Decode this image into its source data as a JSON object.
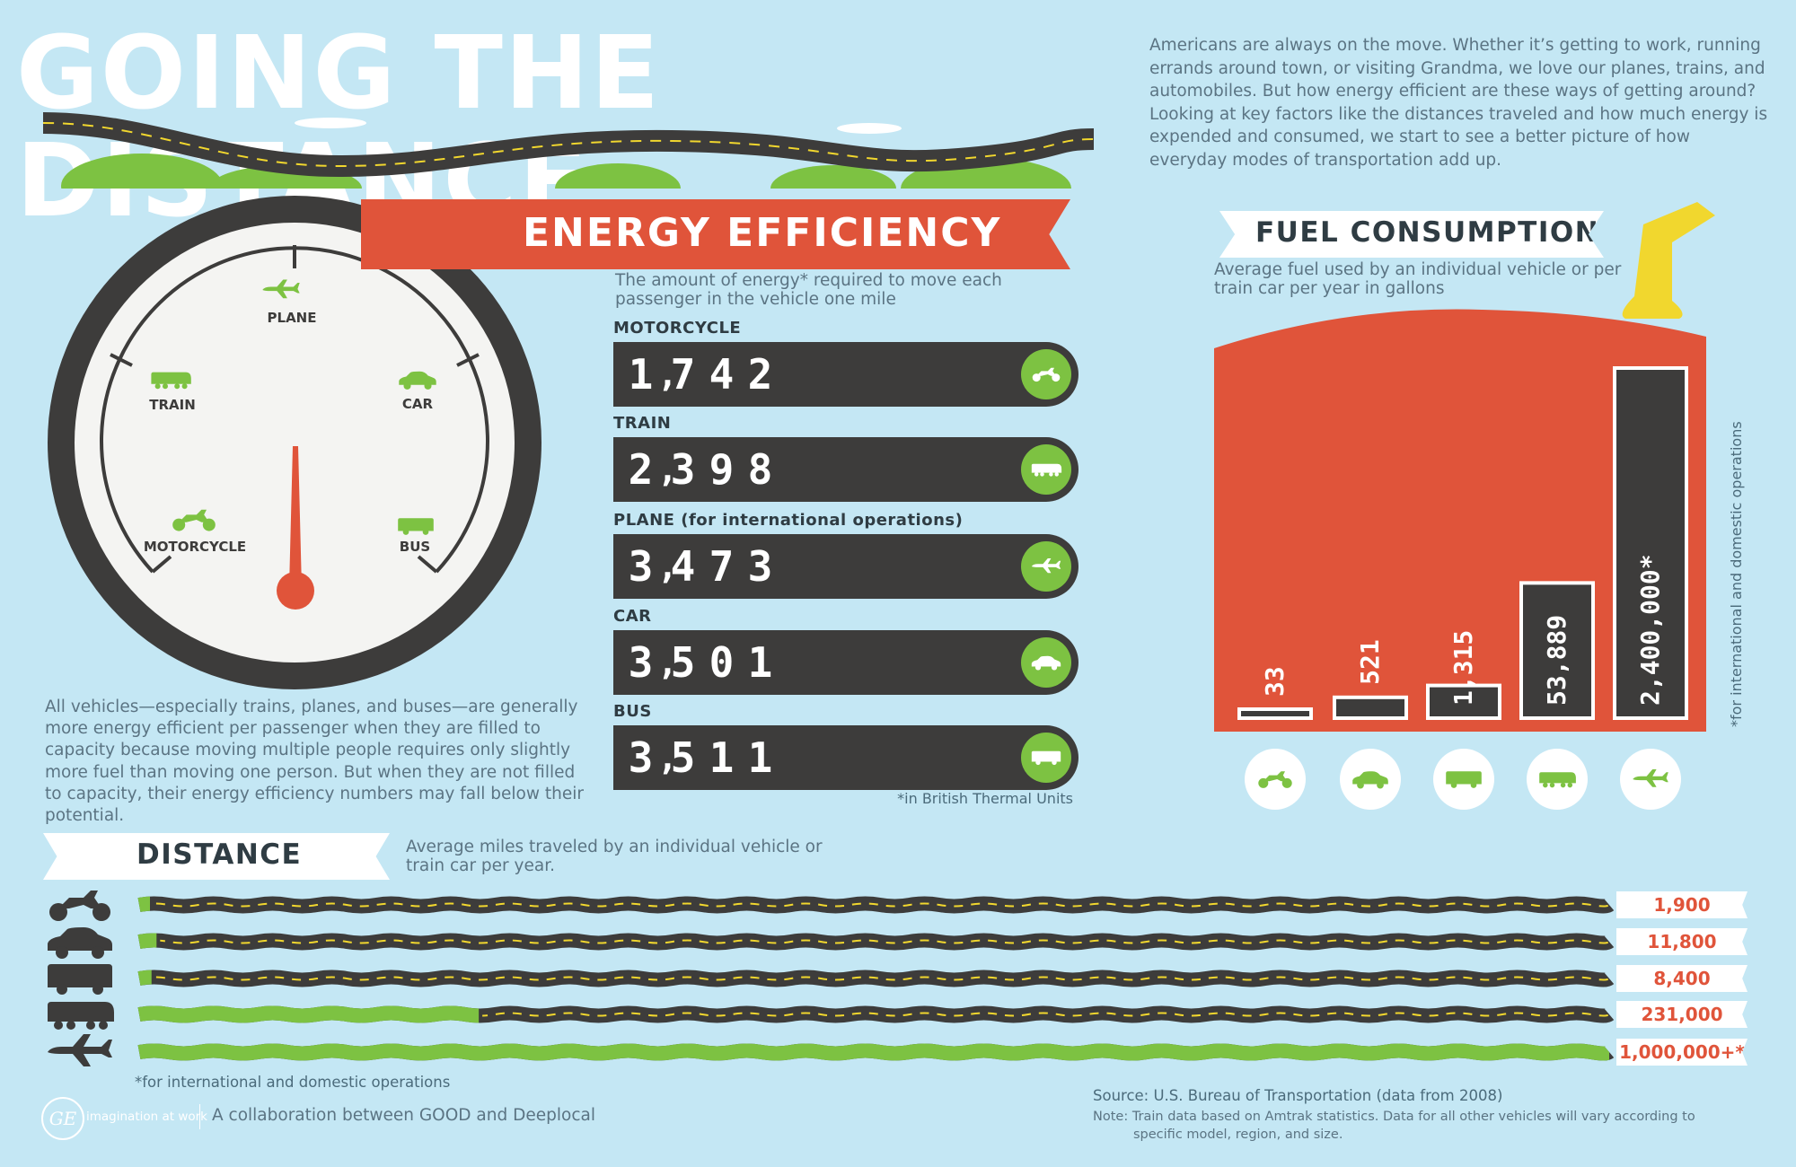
{
  "header": {
    "title": "GOING THE DISTANCE",
    "intro": "Americans are always on the move. Whether it’s getting to work, running errands around town, or visiting Grandma, we love our planes, trains, and automobiles. But how energy efficient are these ways of getting around? Looking at key factors like the distances traveled and how much energy is expended and consumed, we start to see a better picture of how everyday modes of transportation add up."
  },
  "gauge": {
    "labels": [
      "PLANE",
      "TRAIN",
      "CAR",
      "MOTORCYCLE",
      "BUS"
    ],
    "note": "All vehicles—especially trains, planes, and buses—are generally more energy efficient per passenger when they are filled to capacity because moving multiple people requires only slightly more fuel than moving one person. But when they are not filled to capacity, their energy efficiency numbers may fall below their potential."
  },
  "colors": {
    "background": "#c4e7f4",
    "accent_red": "#e0543a",
    "green": "#7dc242",
    "dark": "#3d3c3b",
    "yellow": "#f1d72e"
  },
  "energy_efficiency": {
    "title": "ENERGY EFFICIENCY",
    "subtitle": "The amount of energy* required to move each passenger in the vehicle one mile",
    "footnote": "*in British Thermal Units",
    "items": [
      {
        "label": "MOTORCYCLE",
        "value": "1,742",
        "icon": "motorcycle-icon"
      },
      {
        "label": "TRAIN",
        "value": "2,398",
        "icon": "train-icon"
      },
      {
        "label": "PLANE (for international operations)",
        "value": "3,473",
        "icon": "plane-icon"
      },
      {
        "label": "CAR",
        "value": "3,501",
        "icon": "car-icon"
      },
      {
        "label": "BUS",
        "value": "3,511",
        "icon": "bus-icon"
      }
    ]
  },
  "fuel_consumption": {
    "title": "FUEL CONSUMPTION",
    "subtitle": "Average fuel used by an individual vehicle or per train car per year in gallons",
    "side_note": "*for international and domestic operations",
    "items": [
      {
        "label": "33",
        "icon": "motorcycle-icon"
      },
      {
        "label": "521",
        "icon": "car-icon"
      },
      {
        "label": "1,315",
        "icon": "bus-icon"
      },
      {
        "label": "53,889",
        "icon": "train-icon"
      },
      {
        "label": "2,400,000*",
        "icon": "plane-icon"
      }
    ]
  },
  "distance": {
    "title": "DISTANCE",
    "subtitle": "Average miles traveled by an individual vehicle or train car per year.",
    "footnote": "*for international and domestic operations",
    "items": [
      {
        "label": "1,900",
        "icon": "motorcycle-icon",
        "fill": 0.0019
      },
      {
        "label": "11,800",
        "icon": "car-icon",
        "fill": 0.0118
      },
      {
        "label": "8,400",
        "icon": "bus-icon",
        "fill": 0.0084
      },
      {
        "label": "231,000",
        "icon": "train-icon",
        "fill": 0.231
      },
      {
        "label": "1,000,000+*",
        "icon": "plane-icon",
        "fill": 1.0
      }
    ]
  },
  "chart_data": [
    {
      "type": "bar",
      "title": "ENERGY EFFICIENCY",
      "subtitle": "The amount of energy* required to move each passenger in the vehicle one mile",
      "categories": [
        "MOTORCYCLE",
        "TRAIN",
        "PLANE (for international operations)",
        "CAR",
        "BUS"
      ],
      "values": [
        1742,
        2398,
        3473,
        3501,
        3511
      ],
      "note": "*in British Thermal Units"
    },
    {
      "type": "bar",
      "title": "FUEL CONSUMPTION",
      "subtitle": "Average fuel used by an individual vehicle or per train car per year in gallons",
      "categories": [
        "motorcycle",
        "car",
        "bus",
        "train",
        "plane"
      ],
      "values": [
        33,
        521,
        1315,
        53889,
        2400000
      ],
      "scale": "log",
      "note": "*for international and domestic operations"
    },
    {
      "type": "bar",
      "title": "DISTANCE",
      "subtitle": "Average miles traveled by an individual vehicle or train car per year.",
      "categories": [
        "motorcycle",
        "car",
        "bus",
        "train",
        "plane"
      ],
      "values": [
        1900,
        11800,
        8400,
        231000,
        1000000
      ],
      "note": "*for international and domestic operations"
    }
  ],
  "footer": {
    "source": "Source: U.S. Bureau of Transportation (data from 2008)",
    "note_line1": "Note: Train data based on Amtrak statistics. Data for all other vehicles will vary according to",
    "note_line2": "specific model, region, and size.",
    "brand_tag": "imagination at work",
    "brand_logo": "GE",
    "collaboration": "A collaboration between GOOD and Deeplocal"
  }
}
